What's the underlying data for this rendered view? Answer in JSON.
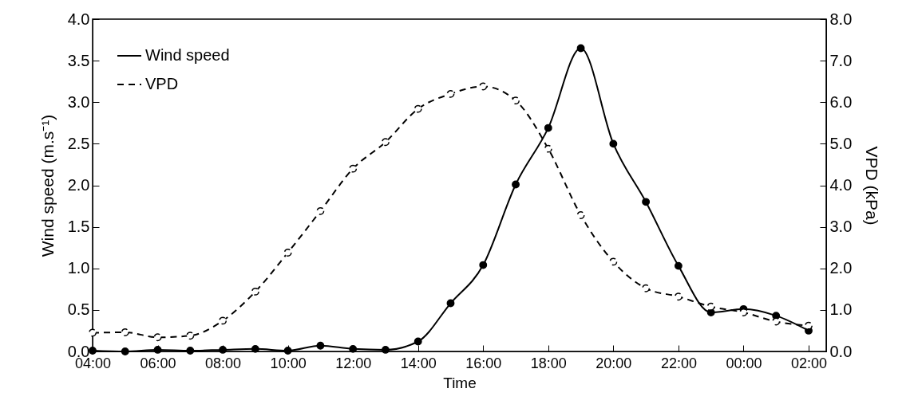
{
  "chart_data": {
    "type": "line",
    "xlabel": "Time",
    "ylabel": "Wind speed (m.s⁻¹)",
    "y2label": "VPD (kPa)",
    "categories": [
      "04:00",
      null,
      "06:00",
      null,
      "08:00",
      null,
      "10:00",
      null,
      "12:00",
      null,
      "14:00",
      null,
      "16:00",
      null,
      "18:00",
      null,
      "20:00",
      null,
      "22:00",
      null,
      "00:00",
      null,
      "02:00"
    ],
    "ylim": [
      0,
      4
    ],
    "yticks": [
      {
        "value": 0,
        "label": "0.0"
      },
      {
        "value": 0.5,
        "label": "0.5"
      },
      {
        "value": 1,
        "label": "1.0"
      },
      {
        "value": 1.5,
        "label": "1.5"
      },
      {
        "value": 2,
        "label": "2.0"
      },
      {
        "value": 2.5,
        "label": "2.5"
      },
      {
        "value": 3,
        "label": "3.0"
      },
      {
        "value": 3.5,
        "label": "3.5"
      },
      {
        "value": 4,
        "label": "4.0"
      }
    ],
    "y2lim": [
      0,
      8
    ],
    "y2ticks": [
      {
        "value": 0,
        "label": "0.0"
      },
      {
        "value": 1,
        "label": "1.0"
      },
      {
        "value": 2,
        "label": "2.0"
      },
      {
        "value": 3,
        "label": "3.0"
      },
      {
        "value": 4,
        "label": "4.0"
      },
      {
        "value": 5,
        "label": "5.0"
      },
      {
        "value": 6,
        "label": "6.0"
      },
      {
        "value": 7,
        "label": "7.0"
      },
      {
        "value": 8,
        "label": "8.0"
      }
    ],
    "marker": "circle",
    "legend": "top left",
    "grid": false,
    "series": [
      {
        "name": "Wind speed",
        "color": "#000000",
        "line_style": "solid",
        "values": [
          0.01,
          0.0,
          0.02,
          0.01,
          0.02,
          0.03,
          0.01,
          0.07,
          0.03,
          0.02,
          0.12,
          0.58,
          1.04,
          2.01,
          2.69,
          3.65,
          2.5,
          1.8,
          1.03,
          0.47,
          0.51,
          0.43,
          0.25
        ]
      },
      {
        "name": "VPD",
        "color": "#000000",
        "line_style": "dashed",
        "axis": "y2",
        "values": [
          0.45,
          0.46,
          0.34,
          0.38,
          0.74,
          1.44,
          2.38,
          3.38,
          4.4,
          5.04,
          5.84,
          6.2,
          6.38,
          6.04,
          4.88,
          3.28,
          2.16,
          1.52,
          1.32,
          1.08,
          0.94,
          0.72,
          0.62
        ]
      }
    ]
  }
}
